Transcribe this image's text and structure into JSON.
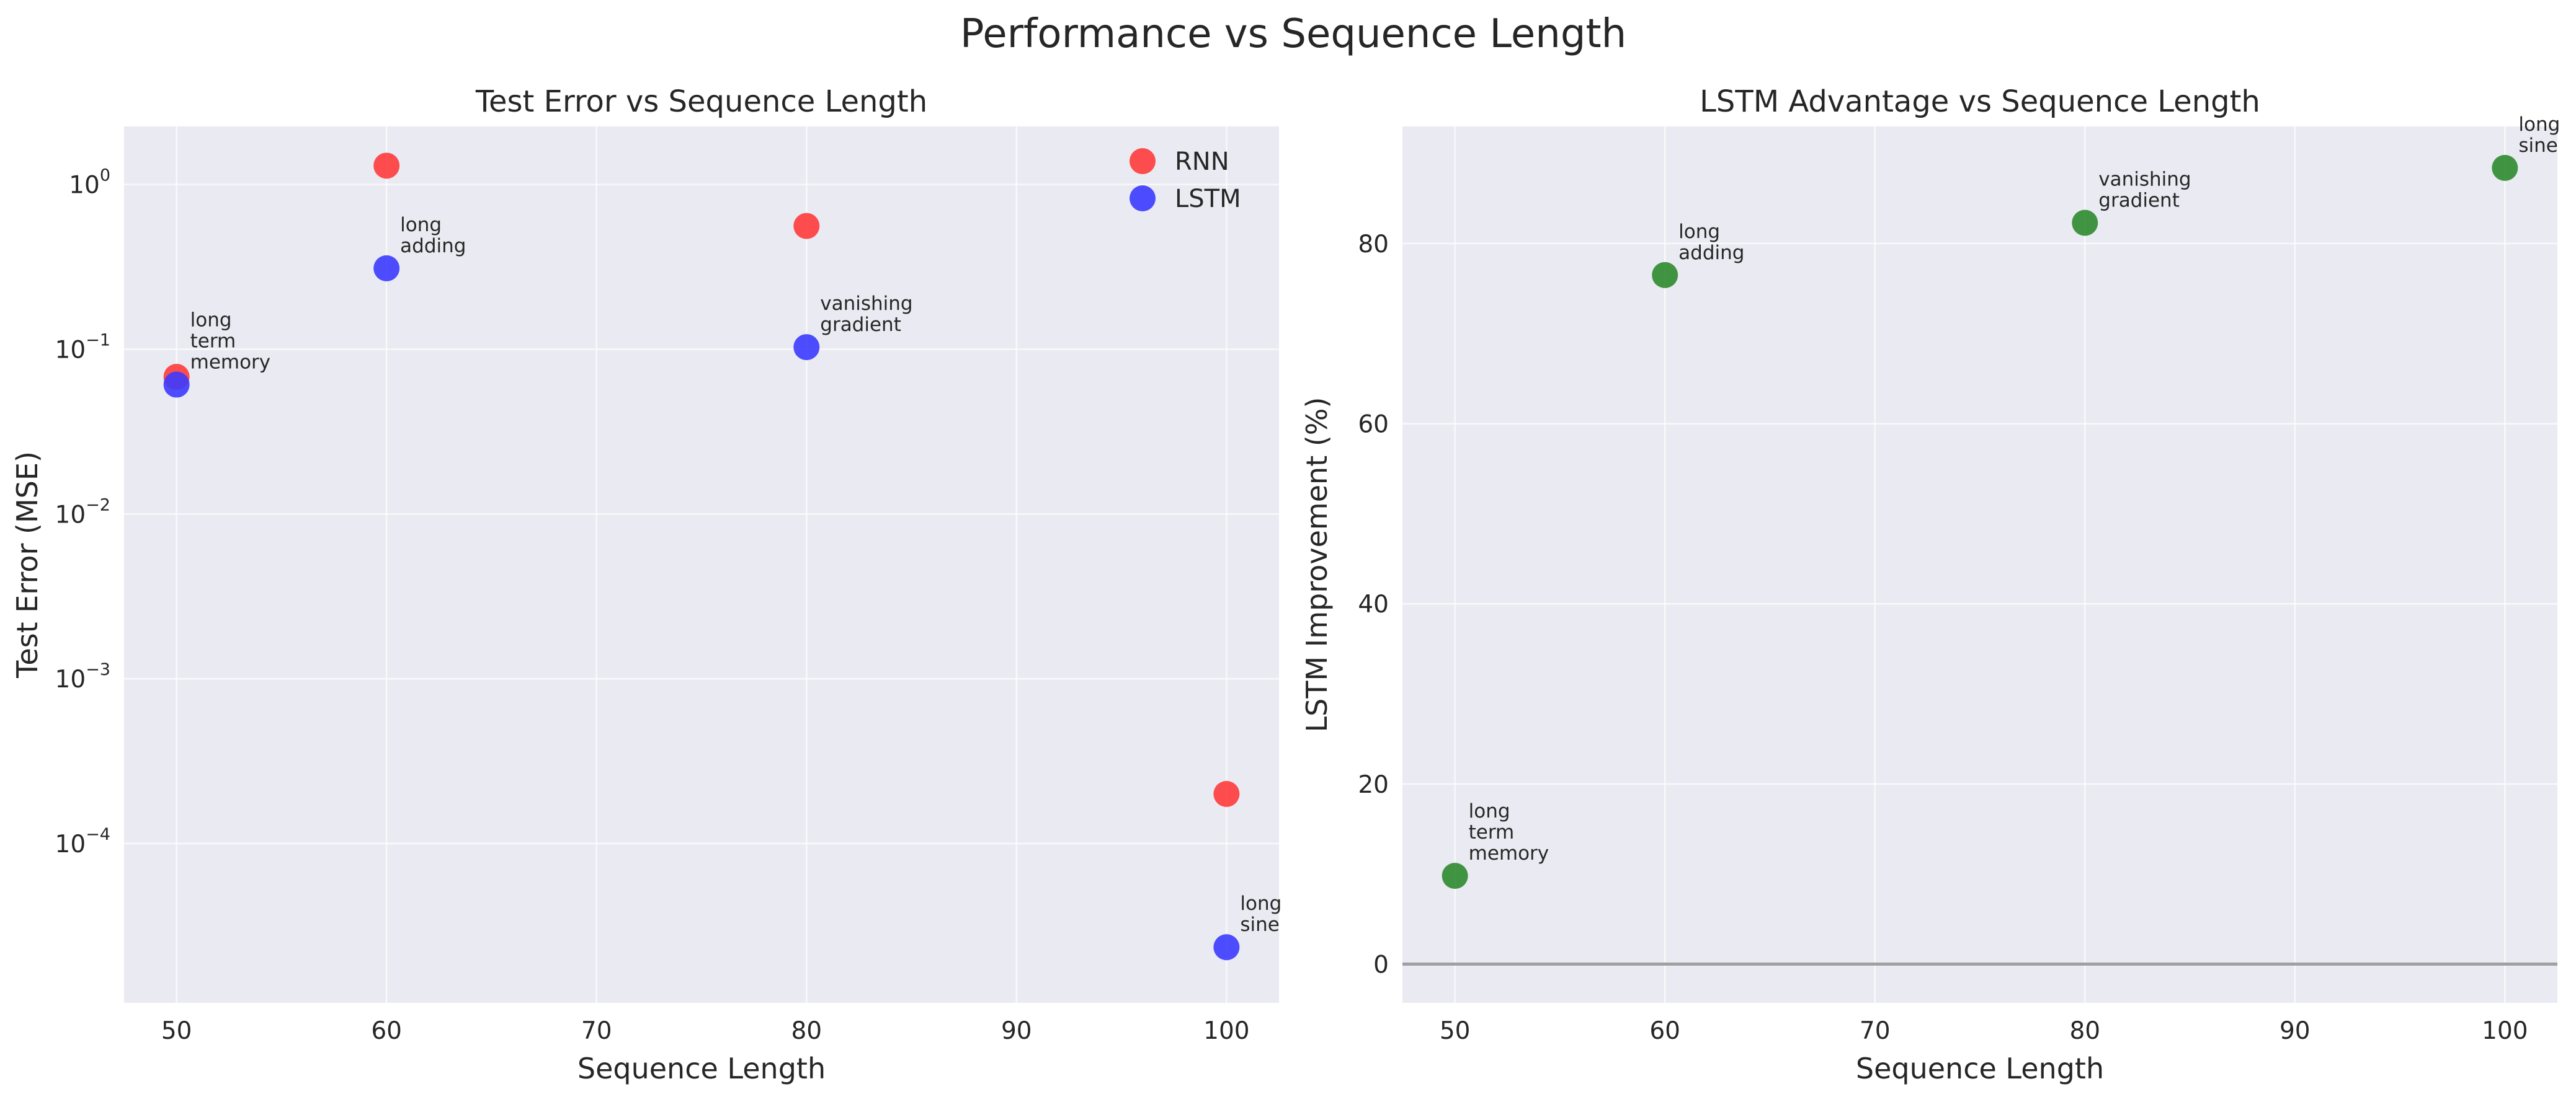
{
  "figure": {
    "title": "Performance vs Sequence Length"
  },
  "chart_data": [
    {
      "type": "scatter",
      "title": "Test Error vs Sequence Length",
      "xlabel": "Sequence Length",
      "ylabel": "Test Error (MSE)",
      "xlim": [
        47.5,
        102.5
      ],
      "ylim": [
        1.08e-05,
        2.25
      ],
      "yscale": "log",
      "xticks": [
        50,
        60,
        70,
        80,
        90,
        100
      ],
      "yticks": [
        {
          "value": 0.0001,
          "base": "10",
          "exp": "−4"
        },
        {
          "value": 0.001,
          "base": "10",
          "exp": "−3"
        },
        {
          "value": 0.01,
          "base": "10",
          "exp": "−2"
        },
        {
          "value": 0.1,
          "base": "10",
          "exp": "−1"
        },
        {
          "value": 1,
          "base": "10",
          "exp": "0"
        }
      ],
      "grid": true,
      "legend": "top-right",
      "series": [
        {
          "name": "RNN",
          "color": "#ff3b3b",
          "points": [
            {
              "x": 50,
              "y": 0.068
            },
            {
              "x": 60,
              "y": 1.3
            },
            {
              "x": 80,
              "y": 0.56
            },
            {
              "x": 100,
              "y": 0.0002
            }
          ]
        },
        {
          "name": "LSTM",
          "color": "#3b3bff",
          "points": [
            {
              "x": 50,
              "y": 0.061
            },
            {
              "x": 60,
              "y": 0.31
            },
            {
              "x": 80,
              "y": 0.103
            },
            {
              "x": 100,
              "y": 2.35e-05
            }
          ]
        }
      ],
      "annotations": [
        {
          "x": 50,
          "y": 0.061,
          "lines": [
            "long",
            "term",
            "memory"
          ]
        },
        {
          "x": 60,
          "y": 0.31,
          "lines": [
            "long",
            "adding"
          ]
        },
        {
          "x": 80,
          "y": 0.103,
          "lines": [
            "vanishing",
            "gradient"
          ]
        },
        {
          "x": 100,
          "y": 2.35e-05,
          "lines": [
            "long",
            "sine"
          ]
        }
      ]
    },
    {
      "type": "scatter",
      "title": "LSTM Advantage vs Sequence Length",
      "xlabel": "Sequence Length",
      "ylabel": "LSTM Improvement (%)",
      "xlim": [
        47.5,
        102.5
      ],
      "ylim": [
        -4.3,
        93
      ],
      "yscale": "linear",
      "xticks": [
        50,
        60,
        70,
        80,
        90,
        100
      ],
      "yticks": [
        0,
        20,
        40,
        60,
        80
      ],
      "grid": true,
      "hline": {
        "y": 0,
        "color": "#a0a0a0"
      },
      "series": [
        {
          "color": "#2e8b2e",
          "points": [
            {
              "x": 50,
              "y": 9.8
            },
            {
              "x": 60,
              "y": 76.5
            },
            {
              "x": 80,
              "y": 82.3
            },
            {
              "x": 100,
              "y": 88.4
            }
          ]
        }
      ],
      "annotations": [
        {
          "x": 50,
          "y": 9.8,
          "lines": [
            "long",
            "term",
            "memory"
          ]
        },
        {
          "x": 60,
          "y": 76.5,
          "lines": [
            "long",
            "adding"
          ]
        },
        {
          "x": 80,
          "y": 82.3,
          "lines": [
            "vanishing",
            "gradient"
          ]
        },
        {
          "x": 100,
          "y": 88.4,
          "lines": [
            "long",
            "sine"
          ]
        }
      ]
    }
  ]
}
